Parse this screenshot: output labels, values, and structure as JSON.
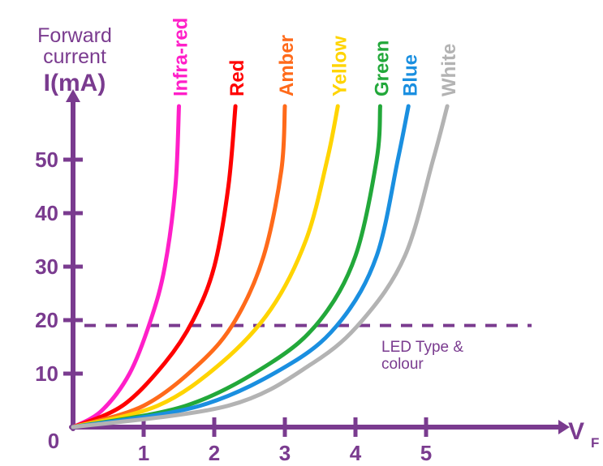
{
  "chart_data": {
    "type": "line",
    "ylabel_line1": "Forward",
    "ylabel_line2": "current",
    "ylabel_line3": "I(mA)",
    "xlabel_main": "V",
    "xlabel_sub": "F",
    "origin_label": "0",
    "xlim": [
      0,
      7
    ],
    "ylim": [
      0,
      60
    ],
    "x_ticks": [
      {
        "value": 1,
        "label": "1"
      },
      {
        "value": 2,
        "label": "2"
      },
      {
        "value": 3,
        "label": "3"
      },
      {
        "value": 4,
        "label": "4"
      },
      {
        "value": 5,
        "label": "5"
      }
    ],
    "y_ticks": [
      {
        "value": 10,
        "label": "10"
      },
      {
        "value": 20,
        "label": "20"
      },
      {
        "value": 30,
        "label": "30"
      },
      {
        "value": 40,
        "label": "40"
      },
      {
        "value": 50,
        "label": "50"
      }
    ],
    "reference_line": {
      "y": 19,
      "style": "dashed",
      "color": "#7a3b8f"
    },
    "annotation_line1": "LED Type &",
    "annotation_line2": "colour",
    "series": [
      {
        "name": "Infra-red",
        "color": "#ff1fc8",
        "x": [
          0,
          0.4,
          0.8,
          1.1,
          1.3,
          1.45,
          1.5
        ],
        "y": [
          0,
          3,
          10,
          20,
          30,
          45,
          60
        ]
      },
      {
        "name": "Red",
        "color": "#ff0000",
        "x": [
          0,
          0.7,
          1.3,
          1.7,
          2.0,
          2.2,
          2.3
        ],
        "y": [
          0,
          4,
          12,
          20,
          30,
          45,
          60
        ]
      },
      {
        "name": "Amber",
        "color": "#ff6a1a",
        "x": [
          0,
          1.0,
          1.8,
          2.3,
          2.7,
          2.95,
          3.0
        ],
        "y": [
          0,
          4,
          12,
          20,
          32,
          48,
          60
        ]
      },
      {
        "name": "Yellow",
        "color": "#ffd400",
        "x": [
          0,
          1.2,
          2.1,
          2.8,
          3.3,
          3.6,
          3.75
        ],
        "y": [
          0,
          4,
          12,
          22,
          35,
          50,
          60
        ]
      },
      {
        "name": "Green",
        "color": "#22a83a",
        "x": [
          0,
          1.6,
          2.8,
          3.5,
          4.0,
          4.3,
          4.35
        ],
        "y": [
          0,
          4,
          12,
          20,
          32,
          50,
          60
        ]
      },
      {
        "name": "Blue",
        "color": "#1a8fe0",
        "x": [
          0,
          1.8,
          3.1,
          3.8,
          4.3,
          4.6,
          4.75
        ],
        "y": [
          0,
          4,
          12,
          20,
          32,
          50,
          60
        ]
      },
      {
        "name": "White",
        "color": "#b3b3b3",
        "x": [
          0,
          2.2,
          3.4,
          4.1,
          4.7,
          5.1,
          5.3
        ],
        "y": [
          0,
          4,
          12,
          20,
          32,
          50,
          60
        ]
      }
    ]
  }
}
